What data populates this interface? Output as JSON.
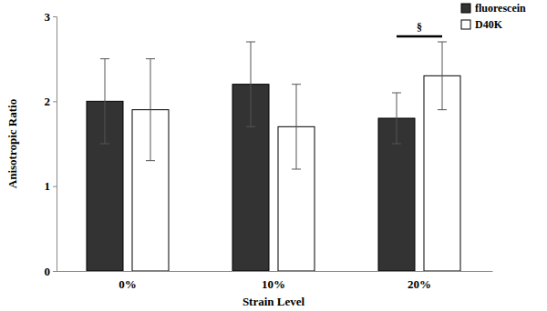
{
  "chart_data": {
    "type": "bar",
    "x_label": "Strain Level",
    "y_label": "Anisotropic Ratio",
    "categories": [
      "0%",
      "10%",
      "20%"
    ],
    "series": [
      {
        "name": "fluorescein",
        "color": "#333333",
        "values": [
          2.0,
          2.2,
          1.8
        ],
        "errors": [
          0.5,
          0.5,
          0.3
        ]
      },
      {
        "name": "D40K",
        "color": "#ffffff",
        "values": [
          1.9,
          1.7,
          2.3
        ],
        "errors": [
          0.6,
          0.5,
          0.4
        ]
      }
    ],
    "ylim": [
      0,
      3
    ],
    "yticks": [
      0,
      1,
      2,
      3
    ],
    "legend": "upper right",
    "annotations": [
      {
        "text": "§",
        "category": "20%"
      }
    ]
  }
}
